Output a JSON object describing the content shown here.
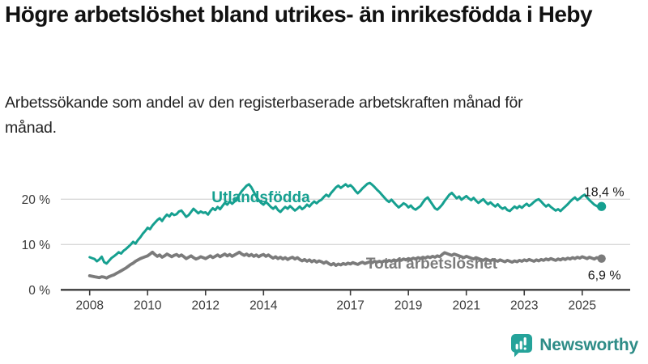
{
  "header": {
    "title": "Högre arbetslöshet bland utrikes- än inrikesfödda i Heby",
    "subtitle": "Arbetssökande som andel av den registerbaserade arbetskraften månad för månad."
  },
  "chart_data": {
    "type": "line",
    "frequency": "monthly",
    "x_start": "2008-01",
    "x_end": "2025-09",
    "x_tick_years": [
      2008,
      2010,
      2012,
      2014,
      2017,
      2019,
      2021,
      2023,
      2025
    ],
    "y_ticks": [
      {
        "value": 0,
        "label": "0 %"
      },
      {
        "value": 10,
        "label": "10 %"
      },
      {
        "value": 20,
        "label": "20 %"
      }
    ],
    "ylim": [
      0,
      25
    ],
    "grid": "horizontal",
    "legend_position": "inline-labels",
    "series": [
      {
        "name": "Utlandsfödda",
        "color": "#16A090",
        "end_value_label": "18,4 %",
        "values": [
          7.2,
          7.0,
          6.8,
          6.3,
          6.7,
          7.3,
          6.1,
          5.8,
          6.4,
          7.0,
          7.4,
          7.8,
          8.3,
          8.0,
          8.6,
          9.0,
          9.5,
          10.0,
          10.6,
          10.2,
          11.0,
          11.6,
          12.4,
          13.0,
          13.7,
          13.4,
          14.2,
          14.8,
          15.4,
          15.8,
          15.2,
          16.0,
          16.6,
          16.2,
          16.9,
          16.5,
          16.7,
          17.3,
          17.5,
          16.8,
          16.1,
          16.5,
          17.2,
          17.9,
          17.4,
          16.9,
          17.3,
          17.0,
          17.1,
          16.6,
          17.4,
          18.0,
          17.6,
          18.3,
          17.8,
          18.5,
          19.2,
          18.8,
          19.5,
          19.0,
          19.5,
          20.2,
          21.0,
          21.8,
          22.4,
          23.0,
          23.3,
          22.6,
          21.6,
          20.6,
          19.8,
          19.2,
          18.8,
          19.4,
          18.9,
          18.3,
          17.9,
          18.4,
          17.6,
          17.2,
          17.8,
          18.3,
          17.9,
          18.5,
          18.0,
          17.5,
          17.9,
          18.4,
          17.8,
          18.2,
          18.8,
          18.4,
          19.0,
          19.5,
          19.1,
          19.6,
          19.9,
          20.5,
          21.0,
          20.6,
          21.4,
          22.0,
          22.6,
          23.0,
          22.5,
          22.9,
          23.3,
          22.8,
          23.1,
          22.6,
          21.9,
          21.3,
          21.8,
          22.4,
          22.9,
          23.4,
          23.6,
          23.2,
          22.7,
          22.1,
          21.6,
          21.0,
          20.4,
          19.8,
          19.4,
          19.9,
          19.3,
          18.7,
          18.2,
          18.6,
          19.1,
          18.8,
          18.2,
          18.6,
          18.0,
          17.7,
          18.1,
          18.5,
          19.3,
          20.0,
          20.4,
          19.6,
          18.8,
          18.0,
          17.7,
          18.2,
          18.8,
          19.6,
          20.3,
          21.0,
          21.4,
          20.8,
          20.2,
          20.6,
          19.9,
          20.3,
          20.7,
          20.2,
          19.8,
          20.3,
          19.7,
          19.2,
          19.6,
          20.0,
          19.4,
          18.9,
          19.3,
          18.8,
          18.4,
          18.9,
          18.3,
          17.9,
          18.2,
          17.6,
          17.4,
          17.9,
          18.4,
          18.0,
          18.5,
          18.1,
          18.6,
          19.0,
          18.5,
          18.9,
          19.4,
          19.8,
          20.0,
          19.5,
          18.9,
          18.4,
          18.8,
          18.3,
          17.9,
          17.5,
          17.8,
          17.4,
          17.9,
          18.4,
          18.9,
          19.5,
          20.0,
          20.4,
          19.8,
          20.2,
          20.7,
          21.0,
          20.4,
          19.8,
          19.3,
          18.8,
          18.5,
          18.2,
          18.4
        ]
      },
      {
        "name": "Total arbetslöshet",
        "color": "#7B7B7B",
        "end_value_label": "6,9 %",
        "values": [
          3.1,
          3.0,
          2.9,
          2.8,
          2.7,
          2.9,
          2.8,
          2.6,
          2.9,
          3.1,
          3.3,
          3.6,
          3.9,
          4.2,
          4.5,
          4.8,
          5.2,
          5.6,
          5.9,
          6.3,
          6.6,
          6.9,
          7.1,
          7.3,
          7.5,
          7.9,
          8.3,
          7.8,
          7.4,
          7.7,
          7.2,
          7.5,
          7.9,
          7.6,
          7.3,
          7.6,
          7.8,
          7.4,
          7.7,
          7.3,
          6.9,
          7.2,
          7.5,
          7.1,
          6.8,
          7.0,
          7.3,
          7.1,
          6.9,
          7.2,
          7.5,
          7.1,
          7.4,
          7.7,
          7.3,
          7.6,
          7.9,
          7.5,
          7.8,
          7.4,
          7.7,
          8.0,
          8.3,
          7.9,
          7.6,
          7.9,
          7.5,
          7.8,
          7.4,
          7.7,
          7.3,
          7.6,
          7.8,
          7.4,
          7.7,
          7.3,
          7.0,
          7.3,
          6.9,
          7.2,
          6.8,
          7.1,
          6.7,
          7.0,
          7.2,
          6.8,
          7.1,
          6.7,
          6.4,
          6.7,
          6.3,
          6.6,
          6.2,
          6.5,
          6.1,
          6.4,
          6.2,
          5.9,
          6.2,
          5.8,
          5.5,
          5.8,
          5.4,
          5.7,
          5.5,
          5.8,
          5.6,
          5.9,
          5.7,
          6.0,
          5.8,
          5.6,
          5.9,
          6.1,
          5.8,
          6.0,
          6.2,
          6.0,
          6.3,
          6.1,
          6.3,
          6.1,
          6.4,
          6.2,
          6.5,
          6.3,
          6.6,
          6.4,
          6.7,
          6.5,
          6.8,
          6.6,
          6.9,
          6.7,
          7.0,
          6.8,
          7.1,
          6.9,
          7.2,
          7.0,
          7.3,
          7.1,
          7.4,
          7.2,
          7.5,
          7.3,
          7.8,
          8.2,
          8.0,
          7.8,
          7.6,
          7.9,
          7.7,
          7.5,
          7.3,
          7.1,
          7.4,
          7.2,
          7.0,
          6.8,
          7.1,
          6.9,
          6.7,
          6.5,
          6.8,
          6.6,
          6.4,
          6.7,
          6.5,
          6.3,
          6.6,
          6.4,
          6.2,
          6.5,
          6.3,
          6.1,
          6.4,
          6.2,
          6.5,
          6.3,
          6.6,
          6.4,
          6.7,
          6.5,
          6.3,
          6.6,
          6.4,
          6.7,
          6.5,
          6.8,
          6.6,
          6.9,
          6.7,
          6.5,
          6.8,
          6.6,
          6.9,
          6.7,
          7.0,
          6.8,
          7.1,
          6.9,
          7.2,
          7.0,
          7.3,
          7.1,
          6.9,
          7.2,
          7.0,
          6.8,
          7.1,
          6.9,
          6.9
        ]
      }
    ]
  },
  "branding": {
    "logo_text": "Newsworthy",
    "icon": "newsworthy-bar-chart-icon",
    "icon_color": "#25A39A",
    "text_color": "#2E8C87"
  },
  "colors": {
    "title_text": "#111111",
    "subtitle_text": "#222222",
    "axis_text": "#3A3A3A",
    "axis_line": "#3B3B3B",
    "gridline": "#D9D9D9",
    "value_label_text": "#1A1A1A",
    "background": "#FFFFFF"
  }
}
